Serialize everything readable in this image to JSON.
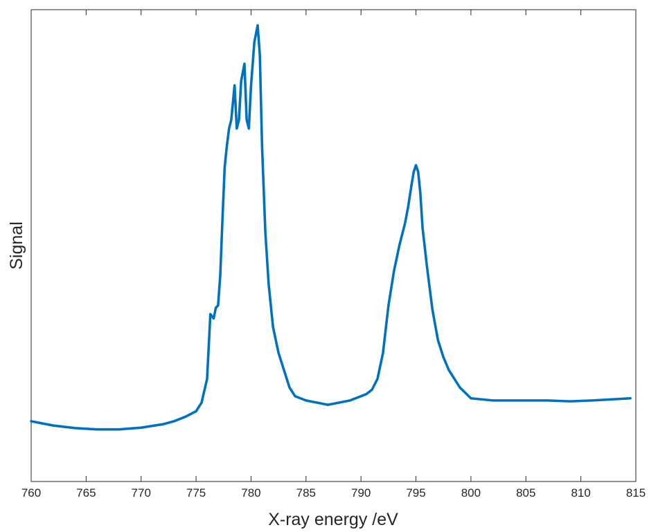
{
  "chart_data": {
    "type": "line",
    "title": "",
    "xlabel": "X-ray energy /eV",
    "ylabel": "Signal",
    "xlim": [
      760,
      815
    ],
    "ylim": [
      0,
      1.0
    ],
    "xticks": [
      760,
      765,
      770,
      775,
      780,
      785,
      790,
      795,
      800,
      805,
      810,
      815
    ],
    "yticks_labeled": false,
    "grid": false,
    "legend": "none",
    "line_color": "#0072BD",
    "series": [
      {
        "x": [
          760,
          762,
          764,
          766,
          768,
          770,
          772,
          773,
          774,
          775,
          775.5,
          776,
          776.3,
          776.6,
          776.8,
          777.0,
          777.2,
          777.4,
          777.6,
          777.8,
          778.0,
          778.2,
          778.5,
          778.7,
          778.9,
          779.1,
          779.4,
          779.6,
          779.8,
          780.0,
          780.3,
          780.6,
          780.8,
          781.0,
          781.3,
          781.6,
          782.0,
          782.5,
          783.0,
          783.5,
          784.0,
          785.0,
          786.0,
          787.0,
          788.0,
          789.0,
          790.0,
          790.5,
          791.0,
          791.5,
          792.0,
          792.5,
          793.0,
          793.5,
          794.0,
          794.3,
          794.6,
          794.8,
          795.0,
          795.2,
          795.4,
          795.6,
          796.0,
          796.5,
          797.0,
          797.5,
          798.0,
          799.0,
          800.0,
          802.0,
          805.0,
          806.0,
          807.0,
          809.0,
          811.0,
          814.5
        ],
        "y": [
          0.082,
          0.072,
          0.066,
          0.063,
          0.063,
          0.067,
          0.075,
          0.082,
          0.092,
          0.105,
          0.125,
          0.18,
          0.33,
          0.32,
          0.345,
          0.35,
          0.42,
          0.55,
          0.67,
          0.72,
          0.76,
          0.78,
          0.86,
          0.76,
          0.78,
          0.87,
          0.91,
          0.78,
          0.76,
          0.86,
          0.96,
          0.999,
          0.93,
          0.72,
          0.52,
          0.4,
          0.3,
          0.24,
          0.2,
          0.16,
          0.14,
          0.13,
          0.125,
          0.12,
          0.125,
          0.13,
          0.14,
          0.145,
          0.155,
          0.18,
          0.24,
          0.35,
          0.43,
          0.49,
          0.54,
          0.58,
          0.63,
          0.66,
          0.675,
          0.66,
          0.61,
          0.53,
          0.44,
          0.34,
          0.27,
          0.23,
          0.2,
          0.16,
          0.135,
          0.13,
          0.13,
          0.13,
          0.13,
          0.128,
          0.13,
          0.135
        ]
      }
    ]
  }
}
